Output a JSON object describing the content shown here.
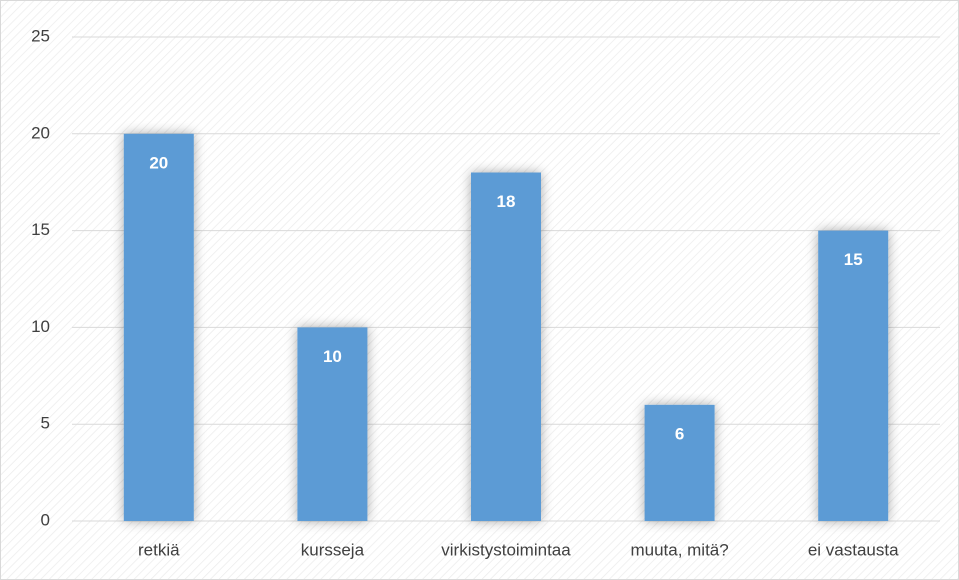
{
  "chart_data": {
    "type": "bar",
    "categories": [
      "retkiä",
      "kursseja",
      "virkistystoimintaa",
      "muuta, mitä?",
      "ei vastausta"
    ],
    "values": [
      20,
      10,
      18,
      6,
      15
    ],
    "color": "#5b9bd5",
    "ylim": [
      0,
      25
    ],
    "yticks": [
      0,
      5,
      10,
      15,
      20,
      25
    ],
    "grid": true
  }
}
